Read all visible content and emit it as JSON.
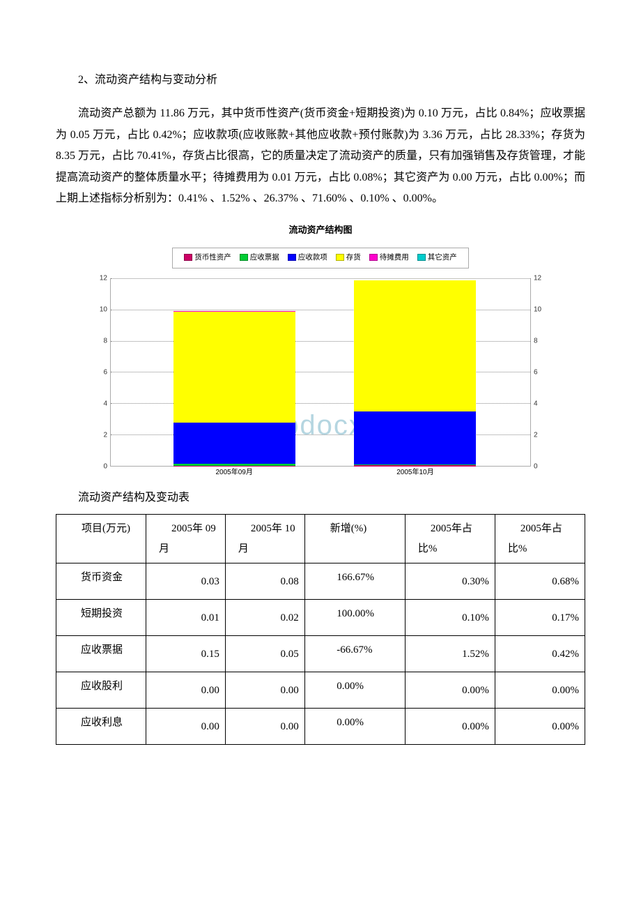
{
  "section_title": "2、流动资产结构与变动分析",
  "paragraph": "流动资产总额为 11.86 万元，其中货币性资产(货币资金+短期投资)为 0.10 万元，占比 0.84%；应收票据为 0.05 万元，占比 0.42%；应收款项(应收账款+其他应收款+预付账款)为 3.36 万元，占比 28.33%；存货为 8.35 万元，占比 70.41%，存货占比很高，它的质量决定了流动资产的质量，只有加强销售及存货管理，才能提高流动资产的整体质量水平；待摊费用为 0.01 万元，占比 0.08%；其它资产为 0.00 万元，占比 0.00%；而上期上述指标分析别为：0.41% 、1.52% 、26.37% 、71.60% 、0.10% 、0.00%。",
  "chart": {
    "title": "流动资产结构图",
    "type": "stacked-bar",
    "ylim": [
      0,
      12
    ],
    "ytick_step": 2,
    "background_color": "#ffffff",
    "grid_color": "#888888",
    "title_fontsize": 13,
    "label_fontsize": 10,
    "bar_width_percent": 29,
    "legend": [
      {
        "label": "货币性资产",
        "color": "#cc0066"
      },
      {
        "label": "应收票据",
        "color": "#00cc33"
      },
      {
        "label": "应收款项",
        "color": "#0000ff"
      },
      {
        "label": "存货",
        "color": "#ffff00"
      },
      {
        "label": "待摊费用",
        "color": "#ff00cc"
      },
      {
        "label": "其它资产",
        "color": "#00cccc"
      }
    ],
    "categories": [
      {
        "label": "2005年09月",
        "x_percent": 15,
        "segments": [
          {
            "color": "#cc0066",
            "value": 0.04
          },
          {
            "color": "#00cc33",
            "value": 0.15
          },
          {
            "color": "#0000ff",
            "value": 2.61
          },
          {
            "color": "#ffff00",
            "value": 7.08
          },
          {
            "color": "#ff00cc",
            "value": 0.01
          },
          {
            "color": "#00cccc",
            "value": 0.0
          }
        ]
      },
      {
        "label": "2005年10月",
        "x_percent": 58,
        "segments": [
          {
            "color": "#cc0066",
            "value": 0.1
          },
          {
            "color": "#00cc33",
            "value": 0.05
          },
          {
            "color": "#0000ff",
            "value": 3.36
          },
          {
            "color": "#ffff00",
            "value": 8.35
          },
          {
            "color": "#ff00cc",
            "value": 0.01
          },
          {
            "color": "#00cccc",
            "value": 0.0
          }
        ]
      }
    ],
    "watermark": "www.bdocx.com"
  },
  "table_caption": "流动资产结构及变动表",
  "table": {
    "columns": [
      {
        "label": "项目(万元)",
        "width": "17%"
      },
      {
        "label": "2005年 09 月",
        "width": "15%"
      },
      {
        "label": "2005年 10 月",
        "width": "15%"
      },
      {
        "label": "新增(%)",
        "width": "19%"
      },
      {
        "label": "2005年占比%",
        "width": "17%"
      },
      {
        "label": "2005年占比%",
        "width": "17%"
      }
    ],
    "rows": [
      {
        "label": "货币资金",
        "v09": "0.03",
        "v10": "0.08",
        "chg": "166.67%",
        "p1": "0.30%",
        "p2": "0.68%"
      },
      {
        "label": "短期投资",
        "v09": "0.01",
        "v10": "0.02",
        "chg": "100.00%",
        "p1": "0.10%",
        "p2": "0.17%"
      },
      {
        "label": "应收票据",
        "v09": "0.15",
        "v10": "0.05",
        "chg": "-66.67%",
        "p1": "1.52%",
        "p2": "0.42%"
      },
      {
        "label": "应收股利",
        "v09": "0.00",
        "v10": "0.00",
        "chg": "0.00%",
        "p1": "0.00%",
        "p2": "0.00%"
      },
      {
        "label": "应收利息",
        "v09": "0.00",
        "v10": "0.00",
        "chg": "0.00%",
        "p1": "0.00%",
        "p2": "0.00%"
      }
    ]
  }
}
